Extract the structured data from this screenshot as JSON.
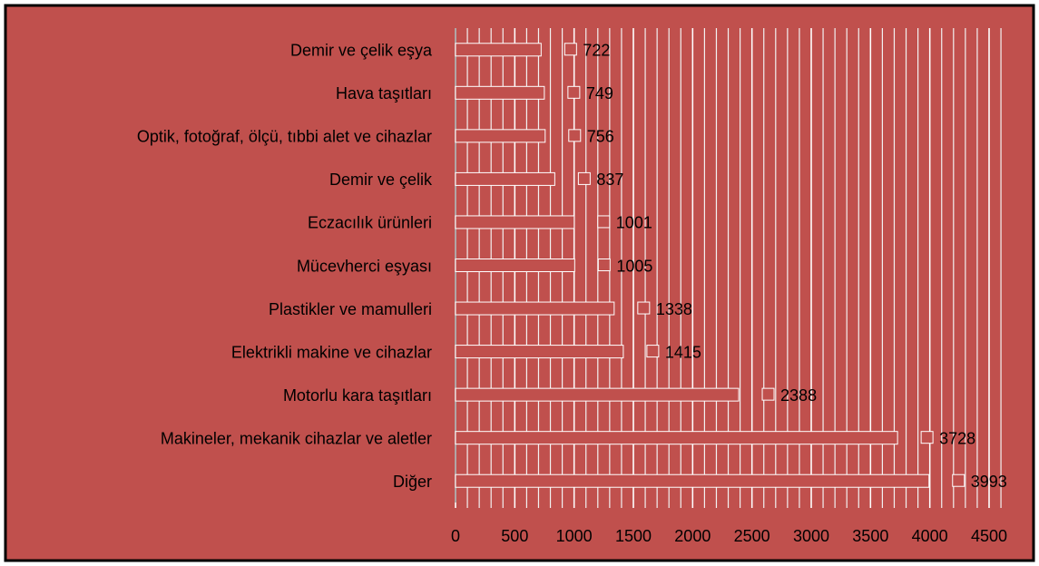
{
  "chart_data": {
    "type": "bar",
    "orientation": "horizontal",
    "categories": [
      "Demir ve çelik eşya",
      "Hava taşıtları",
      "Optik, fotoğraf, ölçü, tıbbi alet ve cihazlar",
      "Demir ve çelik",
      "Eczacılık ürünleri",
      "Mücevherci eşyası",
      "Plastikler ve mamulleri",
      "Elektrikli makine ve cihazlar",
      "Motorlu kara taşıtları",
      "Makineler, mekanik cihazlar ve aletler",
      "Diğer"
    ],
    "values": [
      722,
      749,
      756,
      837,
      1001,
      1005,
      1338,
      1415,
      2388,
      3728,
      3993
    ],
    "color": "#c0504d",
    "xlim": [
      0,
      4500
    ],
    "xticks": [
      0,
      500,
      1000,
      1500,
      2000,
      2500,
      3000,
      3500,
      4000,
      4500
    ],
    "grid": true,
    "minor_grid_step": 100,
    "data_labels": true
  }
}
